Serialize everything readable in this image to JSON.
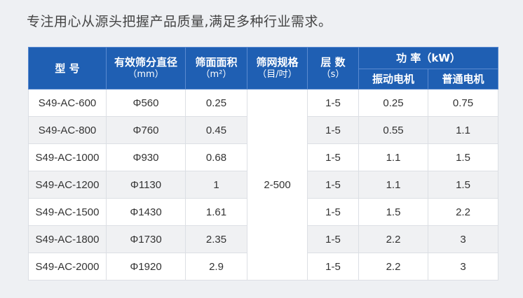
{
  "intro": "专注用心从源头把握产品质量,满足多种行业需求。",
  "table": {
    "headers": {
      "model": "型 号",
      "diameter": "有效筛分直径",
      "diameter_unit": "（mm）",
      "area": "筛面面积",
      "area_unit": "（m²）",
      "mesh": "筛网规格",
      "mesh_unit": "（目/吋）",
      "layers": "层 数",
      "layers_unit": "（s）",
      "power": "功 率（kW）",
      "vib_motor": "振动电机",
      "normal_motor": "普通电机"
    },
    "mesh_value": "2-500",
    "rows": [
      {
        "model": "S49-AC-600",
        "diameter": "Φ560",
        "area": "0.25",
        "layers": "1-5",
        "vib": "0.25",
        "normal": "0.75"
      },
      {
        "model": "S49-AC-800",
        "diameter": "Φ760",
        "area": "0.45",
        "layers": "1-5",
        "vib": "0.55",
        "normal": "1.1"
      },
      {
        "model": "S49-AC-1000",
        "diameter": "Φ930",
        "area": "0.68",
        "layers": "1-5",
        "vib": "1.1",
        "normal": "1.5"
      },
      {
        "model": "S49-AC-1200",
        "diameter": "Φ1130",
        "area": "1",
        "layers": "1-5",
        "vib": "1.1",
        "normal": "1.5"
      },
      {
        "model": "S49-AC-1500",
        "diameter": "Φ1430",
        "area": "1.61",
        "layers": "1-5",
        "vib": "1.5",
        "normal": "2.2"
      },
      {
        "model": "S49-AC-1800",
        "diameter": "Φ1730",
        "area": "2.35",
        "layers": "1-5",
        "vib": "2.2",
        "normal": "3"
      },
      {
        "model": "S49-AC-2000",
        "diameter": "Φ1920",
        "area": "2.9",
        "layers": "1-5",
        "vib": "2.2",
        "normal": "3"
      }
    ]
  }
}
